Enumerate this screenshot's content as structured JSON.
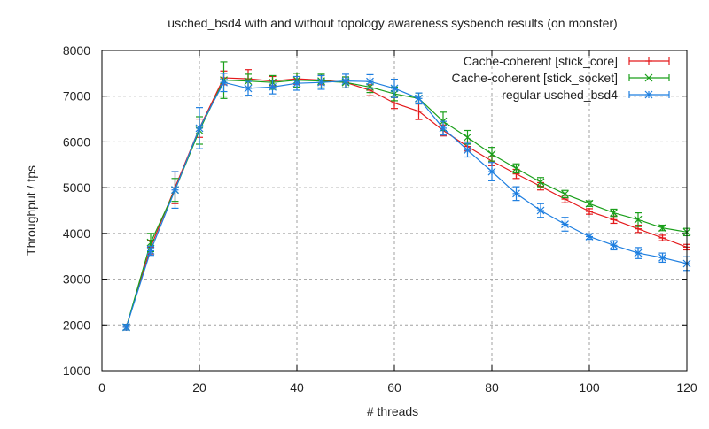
{
  "chart_data": {
    "type": "line",
    "title": "usched_bsd4 with and without topology awareness sysbench results (on monster)",
    "xlabel": "# threads",
    "ylabel": "Throughput / tps",
    "xlim": [
      0,
      120
    ],
    "ylim": [
      1000,
      8000
    ],
    "xticks": [
      0,
      20,
      40,
      60,
      80,
      100,
      120
    ],
    "yticks": [
      1000,
      2000,
      3000,
      4000,
      5000,
      6000,
      7000,
      8000
    ],
    "grid": true,
    "legend_position": "top-right",
    "x": [
      5,
      10,
      15,
      20,
      25,
      30,
      35,
      40,
      45,
      50,
      55,
      60,
      65,
      70,
      75,
      80,
      85,
      90,
      95,
      100,
      105,
      110,
      115,
      120
    ],
    "series": [
      {
        "name": "Cache-coherent [stick_core]",
        "color": "#e41a1c",
        "marker": "plus",
        "values": [
          1950,
          3700,
          5000,
          6300,
          7400,
          7380,
          7330,
          7380,
          7350,
          7300,
          7130,
          6850,
          6670,
          6250,
          5900,
          5580,
          5300,
          5030,
          4750,
          4480,
          4300,
          4100,
          3900,
          3700
        ],
        "errors": [
          60,
          150,
          350,
          200,
          150,
          200,
          100,
          120,
          100,
          120,
          120,
          120,
          180,
          120,
          100,
          100,
          100,
          80,
          80,
          60,
          80,
          80,
          60,
          60
        ]
      },
      {
        "name": "Cache-coherent [stick_socket]",
        "color": "#1a9f1a",
        "marker": "cross",
        "values": [
          1950,
          3800,
          4950,
          6250,
          7350,
          7330,
          7300,
          7350,
          7330,
          7300,
          7200,
          7050,
          6950,
          6450,
          6100,
          5730,
          5420,
          5120,
          4860,
          4650,
          4450,
          4300,
          4120,
          4030
        ],
        "errors": [
          60,
          200,
          250,
          300,
          400,
          150,
          150,
          150,
          150,
          120,
          120,
          150,
          120,
          200,
          150,
          150,
          100,
          100,
          80,
          60,
          80,
          150,
          60,
          80
        ]
      },
      {
        "name": "regular usched_bsd4",
        "color": "#1f7fe0",
        "marker": "star",
        "values": [
          1950,
          3620,
          4950,
          6300,
          7300,
          7170,
          7200,
          7280,
          7300,
          7330,
          7320,
          7170,
          6950,
          6300,
          5820,
          5350,
          4870,
          4500,
          4200,
          3930,
          3740,
          3570,
          3470,
          3340
        ],
        "errors": [
          60,
          100,
          400,
          450,
          200,
          150,
          150,
          150,
          150,
          150,
          150,
          200,
          120,
          150,
          150,
          200,
          150,
          150,
          150,
          60,
          100,
          120,
          100,
          150
        ]
      }
    ]
  }
}
